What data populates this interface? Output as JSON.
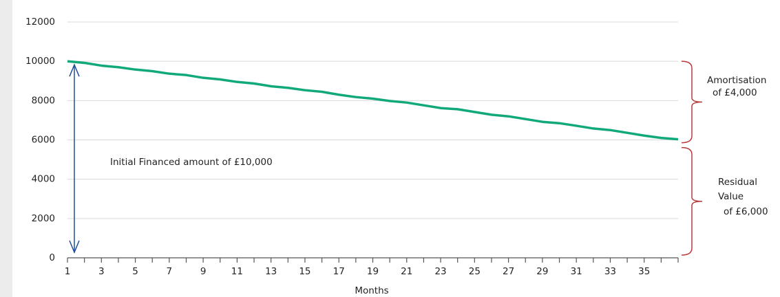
{
  "chart_data": {
    "type": "line",
    "x": [
      1,
      2,
      3,
      4,
      5,
      6,
      7,
      8,
      9,
      10,
      11,
      12,
      13,
      14,
      15,
      16,
      17,
      18,
      19,
      20,
      21,
      22,
      23,
      24,
      25,
      26,
      27,
      28,
      29,
      30,
      31,
      32,
      33,
      34,
      35,
      36,
      37
    ],
    "values": [
      10000,
      9920,
      9780,
      9700,
      9580,
      9500,
      9370,
      9300,
      9160,
      9080,
      8950,
      8870,
      8730,
      8650,
      8530,
      8450,
      8300,
      8180,
      8100,
      7980,
      7900,
      7760,
      7620,
      7560,
      7420,
      7280,
      7200,
      7060,
      6920,
      6850,
      6720,
      6580,
      6500,
      6360,
      6220,
      6100,
      6030
    ],
    "color": "#12a97a",
    "xlim": [
      1,
      37
    ],
    "xticks": [
      1,
      3,
      5,
      7,
      9,
      11,
      13,
      15,
      17,
      19,
      21,
      23,
      25,
      27,
      29,
      31,
      33,
      35
    ],
    "ylim": [
      0,
      12000
    ],
    "yticks": [
      0,
      2000,
      4000,
      6000,
      8000,
      10000,
      12000
    ],
    "grid": true,
    "x_label": "Months",
    "annotations": {
      "initial": "Initial Financed amount of £10,000",
      "amortisation": [
        "Amortisation",
        "of £4,000"
      ],
      "residual": [
        "Residual",
        "Value",
        "of £6,000"
      ]
    }
  }
}
